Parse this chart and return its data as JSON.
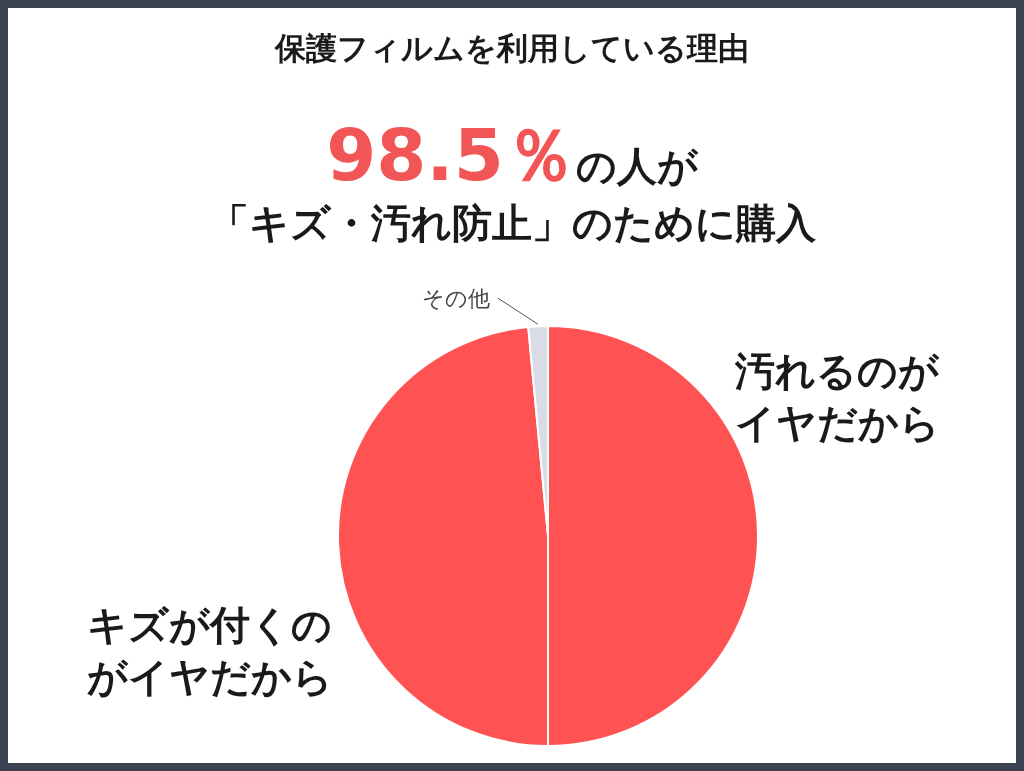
{
  "chart_data": {
    "type": "pie",
    "title": "保護フィルムを利用している理由",
    "subtitle": "98.5％の人が「キズ・汚れ防止」のために購入",
    "categories": [
      "汚れるのがイヤだから",
      "キズが付くのがイヤだから",
      "その他"
    ],
    "values": [
      50,
      48.5,
      1.5
    ],
    "colors": [
      "#ff5252",
      "#ff5252",
      "#d9dce6"
    ]
  }
}
